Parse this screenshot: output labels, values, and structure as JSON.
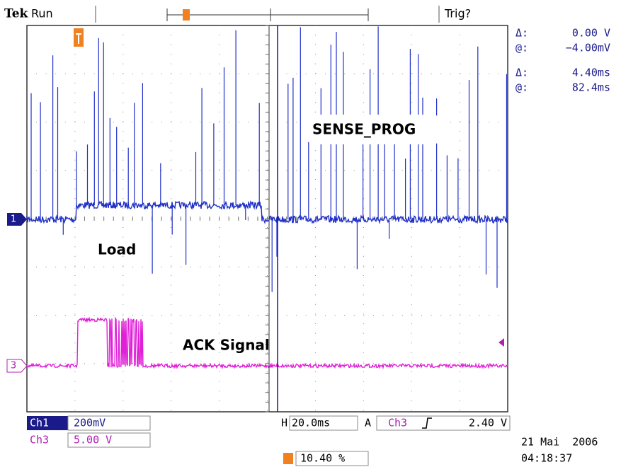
{
  "header": {
    "brand": "Tek",
    "status": "Run",
    "trigger_status": "Trig?"
  },
  "cursors": [
    {
      "delta_label": "Δ:",
      "delta": "0.00 V",
      "at_label": "@:",
      "at": "−4.00mV"
    },
    {
      "delta_label": "Δ:",
      "delta": "4.40ms",
      "at_label": "@:",
      "at": "82.4ms"
    }
  ],
  "labels": {
    "sense": "SENSE_PROG",
    "load": "Load",
    "ack": "ACK Signal"
  },
  "markers": [
    "1",
    "3"
  ],
  "channels": [
    {
      "name": "Ch1",
      "scale": "200mV"
    },
    {
      "name": "Ch3",
      "scale": "5.00 V"
    }
  ],
  "timebase": {
    "label": "H",
    "value": "20.0ms"
  },
  "trigger": {
    "mode": "A",
    "source": "Ch3",
    "level": "2.40 V"
  },
  "position": "10.40 %",
  "date": "21 Mai  2006",
  "time": "04:18:37"
}
